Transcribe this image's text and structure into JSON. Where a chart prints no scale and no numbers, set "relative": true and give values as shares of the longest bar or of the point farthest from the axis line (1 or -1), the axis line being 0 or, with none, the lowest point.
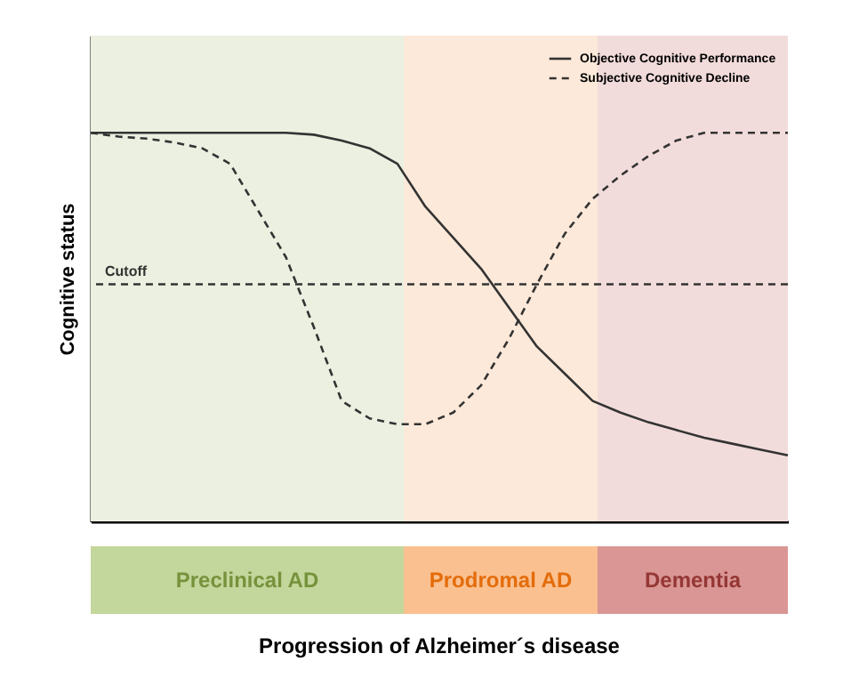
{
  "chart_data": {
    "type": "line",
    "relative": true,
    "ylabel": "Cognitive status",
    "legend": "top right",
    "annotations": [
      "Preclinical AD",
      "Prodromal AD",
      "Dementia",
      "Progression of Alzheimer´s disease"
    ],
    "categories": [
      null,
      null,
      null,
      null,
      null,
      null,
      null,
      null,
      null,
      null,
      null,
      null,
      null,
      null,
      null,
      null,
      null,
      null,
      null,
      null,
      null,
      null,
      null,
      null,
      null,
      null
    ],
    "series": [
      {
        "name": "Objective Cognitive Performance",
        "color": "#333333",
        "line_style": "solid",
        "values": [
          1,
          1,
          1,
          1,
          1,
          1,
          1,
          1,
          0.995,
          0.98,
          0.96,
          0.92,
          0.81,
          0.73,
          0.65,
          0.55,
          0.45,
          0.38,
          0.31,
          0.28,
          0.255,
          0.235,
          0.215,
          0.2,
          0.185,
          0.17
        ]
      },
      {
        "name": "Subjective Cognitive Decline",
        "color": "#333333",
        "line_style": "dashed",
        "values": [
          1,
          0.99,
          0.985,
          0.975,
          0.96,
          0.92,
          0.8,
          0.68,
          0.5,
          0.31,
          0.265,
          0.25,
          0.25,
          0.28,
          0.35,
          0.47,
          0.61,
          0.74,
          0.83,
          0.89,
          0.94,
          0.98,
          1,
          1,
          1,
          1
        ]
      }
    ],
    "ref_lines": [
      {
        "axis": "y",
        "value": 0.61,
        "label": "Cutoff",
        "line_style": "dashed",
        "color": "#333333"
      }
    ]
  }
}
